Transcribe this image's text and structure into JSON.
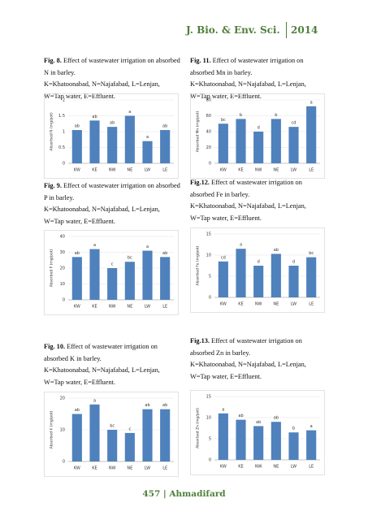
{
  "header": {
    "journal": "J. Bio. & Env. Sci.",
    "year": "2014"
  },
  "captions": [
    {
      "label": "Fig. 8.",
      "text": "Effect of wastewater irrigation on absorbed N in barley.",
      "legend": "K=Khatoonabad, N=Najafabad, L=Lenjan, W=Tap water, E=Effluent."
    },
    {
      "label": "Fig. 11.",
      "text": "Effect of wastewater irrigation on absorbed Mn in barley.",
      "legend": "K=Khatoonabad, N=Najafabad, L=Lenjan, W=Tap water, E=Effluent."
    },
    {
      "label": "Fig. 9.",
      "text": "Effect of wastewater irrigation on absorbed P in barley.",
      "legend": "K=Khatoonabad, N=Najafabad, L=Lenjan, W=Tap water, E=Effluent."
    },
    {
      "label": "Fig.12.",
      "text": "Effect of wastewater irrigation on absorbed Fe in barley.",
      "legend": "K=Khatoonabad, N=Najafabad, L=Lenjan, W=Tap water, E=Effluent."
    },
    {
      "label": "Fig. 10.",
      "text": "Effect of wastewater irrigation on absorbed K in barley.",
      "legend": "K=Khatoonabad, N=Najafabad, L=Lenjan, W=Tap water, E=Effluent."
    },
    {
      "label": "Fig.13.",
      "text": "Effect of wastewater irrigation on absorbed Zn in barley.",
      "legend": "K=Khatoonabad, N=Najafabad, L=Lenjan, W=Tap water, E=Effluent."
    }
  ],
  "chart_data": [
    {
      "type": "bar",
      "y_label": "Absorbed N (mg/pot)",
      "categories": [
        "KW",
        "KE",
        "NW",
        "NE",
        "LW",
        "LE"
      ],
      "values": [
        1.05,
        1.35,
        1.15,
        1.5,
        0.7,
        1.05
      ],
      "annotations": [
        "ab",
        "ab",
        "ab",
        "a",
        "a",
        "ab"
      ],
      "color": "#4f81bd",
      "ylim": [
        0,
        2
      ],
      "yticks": [
        0,
        0.5,
        1,
        1.5,
        2
      ],
      "grid": true
    },
    {
      "type": "bar",
      "y_label": "Absorbed Mn (mg/pot)",
      "categories": [
        "KW",
        "KE",
        "NW",
        "NE",
        "LW",
        "LE"
      ],
      "values": [
        50,
        56,
        40,
        56,
        46,
        72
      ],
      "annotations": [
        "bc",
        "b",
        "d",
        "b",
        "cd",
        "a"
      ],
      "color": "#4f81bd",
      "ylim": [
        0,
        80
      ],
      "yticks": [
        0,
        20,
        40,
        60,
        80
      ],
      "grid": true
    },
    {
      "type": "bar",
      "y_label": "Absorbed P (mg/pot)",
      "categories": [
        "KW",
        "KE",
        "NW",
        "NE",
        "LW",
        "LE"
      ],
      "values": [
        27,
        32,
        20,
        24,
        31,
        27
      ],
      "annotations": [
        "ab",
        "a",
        "c",
        "bc",
        "a",
        "ab"
      ],
      "color": "#4f81bd",
      "ylim": [
        0,
        40
      ],
      "yticks": [
        0,
        10,
        20,
        30,
        40
      ],
      "grid": true
    },
    {
      "type": "bar",
      "y_label": "Absorbed Fe (mg/pot)",
      "categories": [
        "KW",
        "KE",
        "NW",
        "NE",
        "LW",
        "LE"
      ],
      "values": [
        8.5,
        11.5,
        7.5,
        10.3,
        7.5,
        9.5
      ],
      "annotations": [
        "cd",
        "a",
        "d",
        "ab",
        "d",
        "bc"
      ],
      "color": "#4f81bd",
      "ylim": [
        0,
        15
      ],
      "yticks": [
        0,
        5,
        10,
        15
      ],
      "grid": true
    },
    {
      "type": "bar",
      "y_label": "Absorbed K (mg/pot)",
      "categories": [
        "KW",
        "KE",
        "NW",
        "NE",
        "LW",
        "LE"
      ],
      "values": [
        15,
        18,
        10,
        9,
        16.5,
        16.5
      ],
      "annotations": [
        "ab",
        "a",
        "bc",
        "c",
        "ab",
        "ab"
      ],
      "color": "#4f81bd",
      "ylim": [
        0,
        20
      ],
      "yticks": [
        0,
        10,
        20
      ],
      "grid": true
    },
    {
      "type": "bar",
      "y_label": "Absorbed Zn (mg/pot)",
      "categories": [
        "KW",
        "KE",
        "NW",
        "NE",
        "LW",
        "LE"
      ],
      "values": [
        11,
        9.5,
        8,
        9,
        6.5,
        7
      ],
      "annotations": [
        "a",
        "ab",
        "ab",
        "ab",
        "b",
        "a"
      ],
      "color": "#4f81bd",
      "ylim": [
        0,
        15
      ],
      "yticks": [
        0,
        5,
        10,
        15
      ],
      "grid": true
    }
  ],
  "footer": {
    "page": "457",
    "author": "Ahmadifard"
  }
}
